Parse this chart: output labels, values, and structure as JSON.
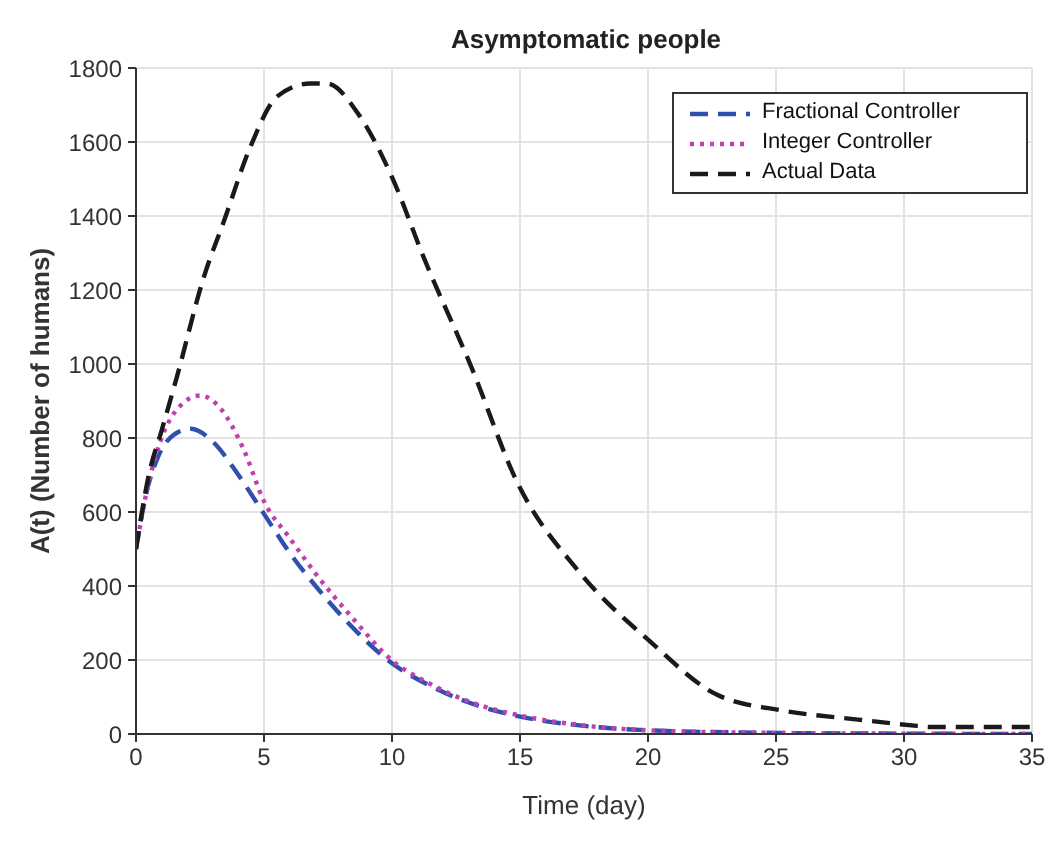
{
  "chart_data": {
    "type": "line",
    "title": "Asymptomatic people",
    "xlabel": "Time (day)",
    "ylabel": "A(t)  (Number of humans)",
    "xlim": [
      0,
      35
    ],
    "xticks": [
      0,
      5,
      10,
      15,
      20,
      25,
      30,
      35
    ],
    "ylim": [
      0,
      1800
    ],
    "yticks": [
      0,
      200,
      400,
      600,
      800,
      1000,
      1200,
      1400,
      1600,
      1800
    ],
    "grid": true,
    "legend": "top right",
    "marker": "none",
    "series": [
      {
        "name": "Fractional Controller",
        "color": "#3050b0",
        "line_style": "dashed",
        "x": [
          0,
          0.4,
          0.85,
          1.5,
          2.15,
          3,
          4,
          5,
          6,
          7.1,
          8.5,
          10,
          11.5,
          13,
          15,
          17.5,
          20,
          25,
          30,
          35
        ],
        "values": [
          500,
          650,
          747,
          810,
          825,
          790,
          700,
          595,
          490,
          393,
          285,
          191,
          130,
          85,
          47,
          22,
          10,
          3,
          1,
          0
        ]
      },
      {
        "name": "Integer Controller",
        "color": "#c040b0",
        "line_style": "dotted",
        "x": [
          0,
          0.4,
          1,
          1.7,
          2.5,
          3.3,
          4.2,
          5,
          6,
          7,
          8.5,
          10,
          11.5,
          13,
          15,
          17.5,
          20,
          25,
          30,
          35
        ],
        "values": [
          500,
          650,
          800,
          885,
          915,
          880,
          770,
          629,
          530,
          435,
          310,
          199,
          135,
          88,
          50,
          23,
          10,
          3,
          1,
          0
        ]
      },
      {
        "name": "Actual Data",
        "color": "#1a1a1a",
        "line_style": "dashed",
        "x": [
          0,
          0.5,
          1,
          1.6,
          2.65,
          3.44,
          4.48,
          5.53,
          6.8,
          7.45,
          8.7,
          10,
          11.25,
          13.08,
          14.9,
          17.25,
          20.1,
          22.7,
          25.3,
          28.2,
          30.5,
          31,
          35
        ],
        "values": [
          500,
          700,
          820,
          966,
          1235,
          1387,
          1589,
          1724,
          1758,
          1758,
          1674,
          1505,
          1286,
          995,
          679,
          443,
          249,
          106,
          63,
          39,
          22,
          19,
          19
        ]
      }
    ]
  }
}
